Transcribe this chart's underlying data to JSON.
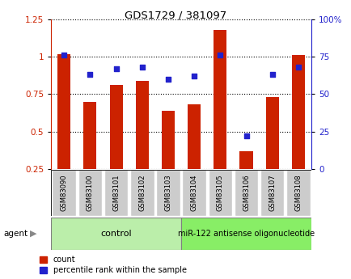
{
  "title": "GDS1729 / 381097",
  "samples": [
    "GSM83090",
    "GSM83100",
    "GSM83101",
    "GSM83102",
    "GSM83103",
    "GSM83104",
    "GSM83105",
    "GSM83106",
    "GSM83107",
    "GSM83108"
  ],
  "count_values": [
    1.02,
    0.7,
    0.81,
    0.84,
    0.64,
    0.68,
    1.18,
    0.37,
    0.73,
    1.01
  ],
  "percentile_values": [
    76,
    63,
    67,
    68,
    60,
    62,
    76,
    22,
    63,
    68
  ],
  "bar_color": "#CC2200",
  "dot_color": "#2222CC",
  "ylim_left": [
    0.25,
    1.25
  ],
  "ylim_right": [
    0,
    100
  ],
  "yticks_left": [
    0.25,
    0.5,
    0.75,
    1.0,
    1.25
  ],
  "yticks_right": [
    0,
    25,
    50,
    75,
    100
  ],
  "ytick_labels_left": [
    "0.25",
    "0.5",
    "0.75",
    "1",
    "1.25"
  ],
  "ytick_labels_right": [
    "0",
    "25",
    "50",
    "75",
    "100%"
  ],
  "n_control": 5,
  "control_label": "control",
  "treatment_label": "miR-122 antisense oligonucleotide",
  "agent_label": "agent",
  "legend_count": "count",
  "legend_percentile": "percentile rank within the sample",
  "control_color": "#BBEEAA",
  "treatment_color": "#88EE66",
  "sample_box_color": "#CCCCCC",
  "bar_width": 0.5
}
